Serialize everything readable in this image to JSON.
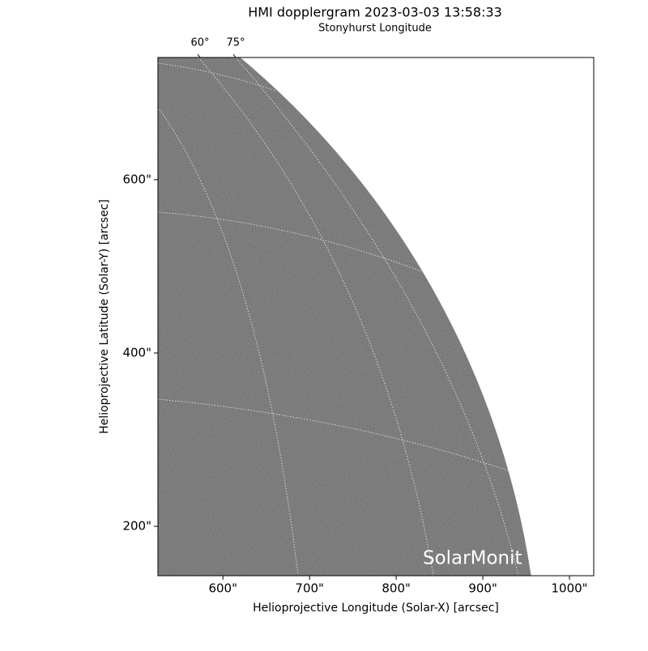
{
  "chart_data": {
    "type": "image",
    "title": "HMI dopplergram 2023-03-03 13:58:33",
    "top_axis_label": "Stonyhurst Longitude",
    "xlabel": "Helioprojective Longitude (Solar-X) [arcsec]",
    "ylabel": "Helioprojective Latitude (Solar-Y) [arcsec]",
    "xlim": [
      525,
      1028
    ],
    "ylim": [
      143,
      741
    ],
    "xticks": [
      {
        "value": 600,
        "label": "600\""
      },
      {
        "value": 700,
        "label": "700\""
      },
      {
        "value": 800,
        "label": "800\""
      },
      {
        "value": 900,
        "label": "900\""
      },
      {
        "value": 1000,
        "label": "1000\""
      }
    ],
    "yticks": [
      {
        "value": 200,
        "label": "200\""
      },
      {
        "value": 400,
        "label": "400\""
      },
      {
        "value": 600,
        "label": "600\""
      }
    ],
    "top_ticks": [
      {
        "value": 60,
        "label": "60°"
      },
      {
        "value": 75,
        "label": "75°"
      }
    ],
    "watermark": "SolarMonit"
  }
}
